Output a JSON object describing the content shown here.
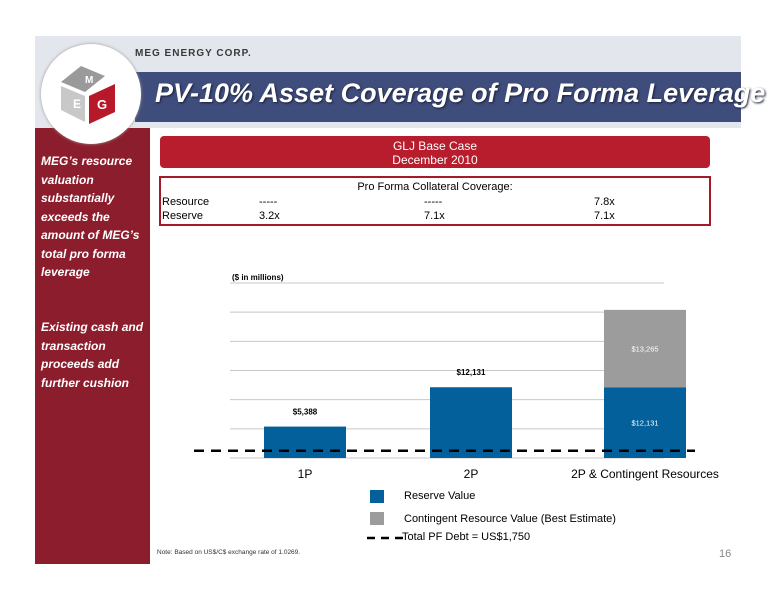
{
  "header": {
    "company": "MEG ENERGY CORP.",
    "title": "PV-10% Asset Coverage of Pro Forma Leverage",
    "logo_text": "MEG"
  },
  "sidebar": {
    "text1": "MEG’s resource valuation substantially exceeds the amount of MEG’s total pro forma leverage",
    "text2": "Existing cash and transaction proceeds add further cushion"
  },
  "banner": {
    "line1": "GLJ Base Case",
    "line2": "December 2010"
  },
  "coverage": {
    "heading": "Pro Forma Collateral Coverage:",
    "rows": [
      {
        "label": "Resource",
        "c1": "-----",
        "c2": "-----",
        "c3": "7.8x"
      },
      {
        "label": "Reserve",
        "c1": "3.2x",
        "c2": "7.1x",
        "c3": "7.1x"
      }
    ]
  },
  "colors": {
    "reserve": "#03609a",
    "contingent": "#9c9c9c",
    "sidebar": "#8c1d2c",
    "title_bar": "#3f4d7d",
    "banner": "#b71d2d"
  },
  "chart_data": {
    "type": "bar",
    "stacked": true,
    "units_label": "($ in millions)",
    "categories": [
      "1P",
      "2P",
      "2P & Contingent Resources"
    ],
    "series": [
      {
        "name": "Reserve Value",
        "values": [
          5388,
          12131,
          12131
        ],
        "labels": [
          "$5,388",
          "$12,131",
          "$12,131"
        ]
      },
      {
        "name": "Contingent Resource Value (Best Estimate)",
        "values": [
          0,
          0,
          13265
        ],
        "labels": [
          "",
          "",
          "$13,265"
        ]
      }
    ],
    "reference_line": {
      "name": "Total PF Debt = US$1,750",
      "value": 1750,
      "style": "dashed"
    },
    "ylim": [
      0,
      30000
    ],
    "grid": true,
    "legend_position": "bottom"
  },
  "footer": {
    "note": "Note: Based on US$/C$ exchange rate of 1.0269.",
    "page": "16"
  }
}
